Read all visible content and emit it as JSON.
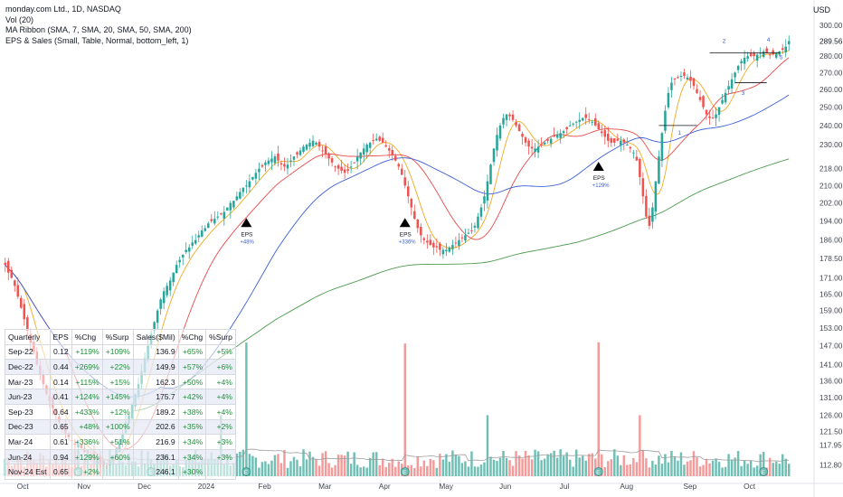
{
  "legend": {
    "symbol_line": "monday.com Ltd., 1D, NASDAQ",
    "vol_line": "Vol (20)",
    "ma_line": "MA Ribbon (SMA, 7, SMA, 20, SMA, 50, SMA, 200)",
    "eps_line": "EPS & Sales (Small, Table, Normal, bottom_left, 1)"
  },
  "currency": "USD",
  "table": {
    "headers": [
      "Quarterly",
      "EPS",
      "%Chg",
      "%Surp",
      "Sales($Mil)",
      "%Chg",
      "%Surp"
    ],
    "rows": [
      {
        "q": "Sep-22",
        "eps": "0.12",
        "eps_chg": "+119%",
        "eps_surp": "+109%",
        "sales": "136.9",
        "sales_chg": "+65%",
        "sales_surp": "+5%"
      },
      {
        "q": "Dec-22",
        "eps": "0.44",
        "eps_chg": "+269%",
        "eps_surp": "+22%",
        "sales": "149.9",
        "sales_chg": "+57%",
        "sales_surp": "+6%"
      },
      {
        "q": "Mar-23",
        "eps": "0.14",
        "eps_chg": "+115%",
        "eps_surp": "+15%",
        "sales": "162.3",
        "sales_chg": "+50%",
        "sales_surp": "+4%"
      },
      {
        "q": "Jun-23",
        "eps": "0.41",
        "eps_chg": "+124%",
        "eps_surp": "+145%",
        "sales": "175.7",
        "sales_chg": "+42%",
        "sales_surp": "+4%"
      },
      {
        "q": "Sep-23",
        "eps": "0.64",
        "eps_chg": "+433%",
        "eps_surp": "+12%",
        "sales": "189.2",
        "sales_chg": "+38%",
        "sales_surp": "+4%"
      },
      {
        "q": "Dec-23",
        "eps": "0.65",
        "eps_chg": "+48%",
        "eps_surp": "+100%",
        "sales": "202.6",
        "sales_chg": "+35%",
        "sales_surp": "+2%"
      },
      {
        "q": "Mar-24",
        "eps": "0.61",
        "eps_chg": "+336%",
        "eps_surp": "+51%",
        "sales": "216.9",
        "sales_chg": "+34%",
        "sales_surp": "+3%"
      },
      {
        "q": "Jun-24",
        "eps": "0.94",
        "eps_chg": "+129%",
        "eps_surp": "+60%",
        "sales": "236.1",
        "sales_chg": "+34%",
        "sales_surp": "+3%"
      },
      {
        "q": "Nov-24 Est",
        "eps": "0.65",
        "eps_chg": "+2%",
        "eps_surp": "",
        "sales": "246.1",
        "sales_chg": "+30%",
        "sales_surp": ""
      }
    ]
  },
  "chart_data": {
    "type": "candlestick",
    "title": "monday.com Ltd., 1D, NASDAQ",
    "price_axis": {
      "ticks": [
        112.8,
        117.95,
        121.5,
        126.0,
        131.0,
        136.0,
        141.0,
        147.0,
        153.0,
        159.0,
        165.0,
        171.0,
        178.5,
        186.0,
        194.0,
        202.0,
        210.0,
        218.0,
        230.0,
        240.0,
        250.0,
        260.0,
        270.0,
        280.0,
        289.56,
        300.0
      ],
      "scale": "log",
      "last_price": 289.56
    },
    "time_axis": [
      "Oct",
      "Nov",
      "Dec",
      "2024",
      "Feb",
      "Mar",
      "Apr",
      "May",
      "Jun",
      "Jul",
      "Aug",
      "Sep",
      "Oct"
    ],
    "closes": [
      176,
      173,
      171,
      168,
      164,
      160,
      156,
      152,
      148,
      145,
      141,
      138,
      135,
      132,
      130,
      128,
      126,
      124,
      122,
      121,
      120,
      119,
      118,
      118,
      117,
      116,
      116,
      115,
      114,
      114,
      113,
      113,
      113,
      114,
      115,
      117,
      119,
      121,
      124,
      126,
      129,
      132,
      135,
      139,
      143,
      147,
      151,
      155,
      159,
      163,
      166,
      168,
      170,
      173,
      176,
      178,
      180,
      182,
      183,
      185,
      186,
      188,
      190,
      191,
      193,
      194,
      195,
      196,
      197,
      198,
      200,
      202,
      203,
      205,
      207,
      209,
      210,
      212,
      214,
      216,
      218,
      219,
      221,
      222,
      223,
      224,
      222,
      220,
      219,
      220,
      222,
      224,
      225,
      227,
      229,
      230,
      231,
      232,
      231,
      229,
      227,
      225,
      223,
      221,
      219,
      218,
      217,
      216,
      217,
      219,
      221,
      224,
      226,
      228,
      230,
      231,
      232,
      233,
      232,
      231,
      229,
      227,
      225,
      222,
      219,
      215,
      210,
      205,
      200,
      195,
      191,
      188,
      186,
      185,
      184,
      183,
      183,
      182,
      182,
      182,
      183,
      184,
      185,
      186,
      187,
      188,
      189,
      190,
      192,
      196,
      200,
      205,
      212,
      220,
      228,
      235,
      240,
      244,
      246,
      245,
      243,
      240,
      237,
      234,
      231,
      229,
      228,
      228,
      229,
      230,
      231,
      232,
      233,
      234,
      235,
      236,
      237,
      238,
      240,
      241,
      242,
      243,
      244,
      244,
      243,
      242,
      240,
      238,
      236,
      234,
      232,
      231,
      231,
      232,
      232,
      231,
      230,
      228,
      226,
      222,
      214,
      205,
      196,
      192,
      200,
      212,
      224,
      236,
      248,
      258,
      264,
      266,
      267,
      268,
      268,
      267,
      265,
      262,
      258,
      254,
      250,
      246,
      244,
      244,
      246,
      250,
      254,
      258,
      262,
      266,
      270,
      274,
      277,
      279,
      280,
      280,
      280,
      281,
      282,
      283,
      282,
      281,
      281,
      282,
      283,
      284,
      286,
      289.56
    ],
    "moving_averages": [
      {
        "name": "SMA 7",
        "color": "#f2a922",
        "period": 7
      },
      {
        "name": "SMA 20",
        "color": "#e94b4b",
        "period": 20
      },
      {
        "name": "SMA 50",
        "color": "#3c5fd6",
        "period": 50
      },
      {
        "name": "SMA 200",
        "color": "#4e9a4e",
        "period": 200
      }
    ],
    "eps_markers": [
      {
        "label": "EPS",
        "change": "+48%",
        "bar": 76
      },
      {
        "label": "EPS",
        "change": "+336%",
        "bar": 126
      },
      {
        "label": "EPS",
        "change": "+129%",
        "bar": 187
      }
    ],
    "annotations": [
      "1",
      "2",
      "3",
      "4",
      "5"
    ],
    "volume_study": "Vol (20)",
    "colors": {
      "up": "#26a69a",
      "down": "#ef5350",
      "volume_up": "#6fbfb5",
      "volume_down": "#f29b9a",
      "volume_ma": "#9e9e9e"
    }
  }
}
